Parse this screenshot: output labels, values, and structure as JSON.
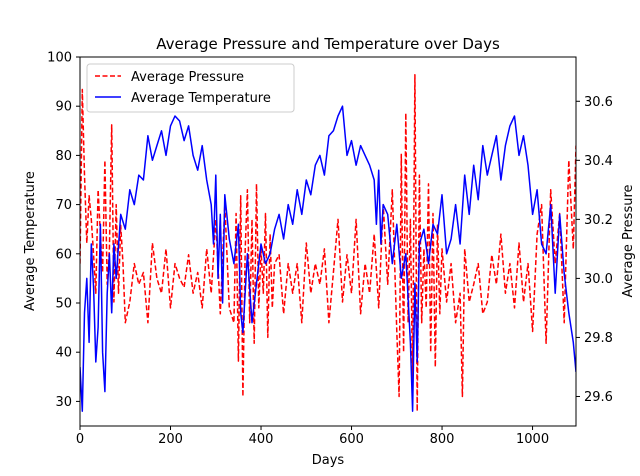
{
  "chart_data": {
    "type": "line",
    "title": "Average Pressure and Temperature over Days",
    "xlabel": "Days",
    "ylabel_left": "Average Temperature",
    "ylabel_right": "Average Pressure",
    "xlim": [
      0,
      1096
    ],
    "ylim_left": [
      25,
      100
    ],
    "ylim_right": [
      29.5,
      30.75
    ],
    "x_ticks": [
      0,
      200,
      400,
      600,
      800,
      1000
    ],
    "y_ticks_left": [
      30,
      40,
      50,
      60,
      70,
      80,
      90,
      100
    ],
    "y_ticks_right": [
      29.6,
      29.8,
      30.0,
      30.2,
      30.4,
      30.6
    ],
    "y_tick_labels_right": [
      "29.6",
      "29.8",
      "30.0",
      "30.2",
      "30.4",
      "30.6"
    ],
    "grid": false,
    "legend_position": "top-left",
    "series": [
      {
        "name": "Average Pressure",
        "axis": "right",
        "color": "#ff0000",
        "style": "dashed",
        "x": [
          0,
          5,
          10,
          15,
          20,
          25,
          30,
          35,
          40,
          45,
          50,
          55,
          60,
          65,
          70,
          75,
          80,
          85,
          90,
          95,
          100,
          110,
          120,
          130,
          140,
          150,
          160,
          170,
          180,
          190,
          200,
          210,
          220,
          230,
          240,
          250,
          260,
          270,
          280,
          290,
          300,
          310,
          320,
          330,
          340,
          345,
          350,
          355,
          360,
          365,
          370,
          375,
          380,
          385,
          390,
          395,
          400,
          405,
          410,
          415,
          420,
          425,
          430,
          440,
          450,
          460,
          470,
          480,
          490,
          500,
          510,
          520,
          530,
          540,
          550,
          560,
          570,
          580,
          590,
          600,
          610,
          620,
          630,
          640,
          650,
          660,
          670,
          680,
          690,
          700,
          705,
          710,
          715,
          720,
          725,
          730,
          735,
          740,
          745,
          750,
          755,
          760,
          765,
          770,
          775,
          780,
          785,
          790,
          795,
          800,
          810,
          820,
          830,
          840,
          845,
          850,
          860,
          870,
          880,
          890,
          900,
          910,
          920,
          930,
          940,
          950,
          960,
          970,
          980,
          990,
          1000,
          1010,
          1020,
          1030,
          1040,
          1050,
          1060,
          1070,
          1080,
          1090,
          1096
        ],
        "values": [
          30.05,
          30.64,
          30.35,
          30.12,
          30.28,
          30.2,
          30.08,
          29.95,
          30.3,
          30.15,
          30.02,
          30.4,
          29.98,
          30.1,
          30.52,
          29.92,
          30.25,
          29.95,
          30.18,
          30.05,
          29.85,
          29.92,
          30.05,
          29.98,
          30.02,
          29.85,
          30.12,
          30.0,
          29.95,
          30.1,
          29.9,
          30.05,
          30.0,
          29.97,
          30.08,
          29.95,
          30.02,
          29.9,
          30.1,
          29.95,
          30.2,
          29.88,
          30.25,
          29.9,
          29.85,
          30.22,
          29.72,
          30.28,
          29.6,
          30.1,
          30.3,
          29.85,
          30.2,
          29.78,
          30.32,
          29.9,
          30.1,
          29.95,
          30.22,
          29.8,
          30.15,
          29.9,
          30.05,
          30.08,
          29.88,
          30.05,
          29.95,
          30.05,
          29.85,
          30.12,
          29.95,
          30.05,
          29.98,
          30.1,
          29.85,
          30.02,
          30.2,
          29.92,
          30.08,
          29.95,
          30.2,
          29.88,
          30.05,
          29.95,
          30.15,
          29.9,
          30.25,
          29.98,
          30.3,
          29.82,
          29.6,
          30.42,
          29.75,
          30.56,
          29.85,
          30.2,
          29.65,
          30.69,
          29.55,
          30.35,
          29.85,
          30.1,
          29.9,
          30.32,
          29.75,
          30.22,
          29.7,
          30.18,
          29.88,
          30.1,
          29.92,
          30.05,
          29.85,
          29.95,
          29.6,
          30.1,
          29.92,
          29.98,
          30.05,
          29.88,
          29.92,
          30.08,
          29.98,
          30.15,
          29.95,
          30.05,
          29.9,
          30.12,
          29.92,
          30.05,
          29.82,
          30.15,
          30.25,
          29.78,
          30.3,
          30.05,
          30.22,
          29.85,
          30.4,
          30.1,
          30.45
        ]
      },
      {
        "name": "Average Temperature",
        "axis": "left",
        "color": "#0000ff",
        "style": "solid",
        "x": [
          0,
          5,
          10,
          15,
          20,
          25,
          30,
          35,
          40,
          45,
          50,
          55,
          60,
          65,
          70,
          75,
          80,
          90,
          100,
          110,
          120,
          130,
          140,
          150,
          160,
          170,
          180,
          190,
          200,
          210,
          220,
          230,
          240,
          250,
          260,
          270,
          280,
          290,
          295,
          300,
          305,
          310,
          315,
          320,
          330,
          340,
          350,
          355,
          360,
          370,
          380,
          390,
          400,
          410,
          420,
          430,
          440,
          450,
          460,
          470,
          480,
          490,
          500,
          510,
          520,
          530,
          540,
          550,
          560,
          570,
          580,
          590,
          600,
          610,
          620,
          630,
          640,
          650,
          655,
          660,
          665,
          670,
          680,
          690,
          700,
          710,
          720,
          730,
          735,
          740,
          745,
          750,
          760,
          770,
          780,
          790,
          800,
          810,
          820,
          830,
          840,
          850,
          860,
          870,
          880,
          890,
          900,
          910,
          920,
          930,
          940,
          950,
          960,
          970,
          980,
          990,
          1000,
          1010,
          1020,
          1030,
          1040,
          1050,
          1060,
          1070,
          1080,
          1090,
          1096
        ],
        "values": [
          37,
          28,
          48,
          55,
          42,
          62,
          53,
          38,
          45,
          66,
          40,
          32,
          52,
          60,
          48,
          62,
          55,
          68,
          65,
          73,
          70,
          76,
          75,
          84,
          79,
          82,
          85,
          80,
          86,
          88,
          87,
          83,
          86,
          80,
          77,
          82,
          75,
          70,
          62,
          76,
          55,
          68,
          50,
          72,
          63,
          58,
          66,
          48,
          44,
          60,
          46,
          54,
          62,
          58,
          60,
          65,
          68,
          63,
          70,
          66,
          73,
          68,
          75,
          72,
          78,
          80,
          76,
          84,
          85,
          88,
          90,
          80,
          83,
          78,
          82,
          80,
          78,
          75,
          66,
          77,
          62,
          70,
          68,
          58,
          66,
          55,
          60,
          42,
          28,
          54,
          38,
          62,
          65,
          58,
          66,
          64,
          72,
          60,
          63,
          70,
          62,
          76,
          68,
          78,
          71,
          82,
          76,
          80,
          84,
          75,
          82,
          86,
          88,
          80,
          84,
          78,
          68,
          73,
          62,
          60,
          70,
          52,
          68,
          56,
          48,
          42,
          36
        ]
      }
    ]
  }
}
